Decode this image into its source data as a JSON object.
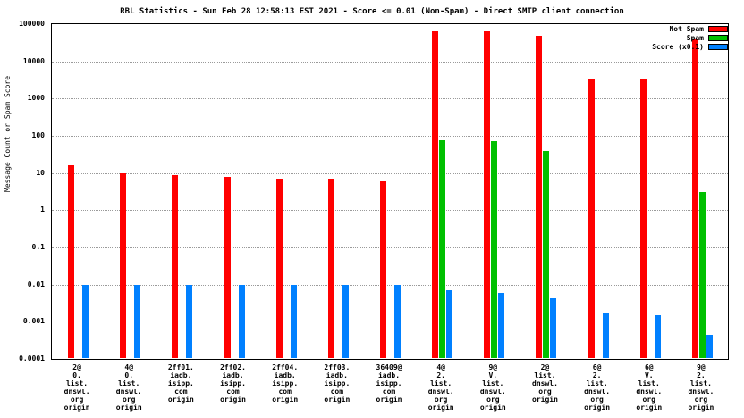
{
  "title": "RBL Statistics - Sun Feb 28 12:58:13 EST 2021 - Score <= 0.01 (Non-Spam) - Direct SMTP client connection",
  "chart_data": {
    "type": "bar",
    "title": "RBL Statistics - Sun Feb 28 12:58:13 EST 2021 - Score <= 0.01 (Non-Spam) - Direct SMTP client connection",
    "ylabel": "Message Count or Spam Score",
    "yscale": "log",
    "ylim": [
      0.0001,
      100000
    ],
    "grid": true,
    "legend_position": "top-right",
    "yticks": [
      {
        "value": 100000,
        "label": "100000"
      },
      {
        "value": 10000,
        "label": "10000"
      },
      {
        "value": 1000,
        "label": "1000"
      },
      {
        "value": 100,
        "label": "100"
      },
      {
        "value": 10,
        "label": "10"
      },
      {
        "value": 1,
        "label": "1"
      },
      {
        "value": 0.1,
        "label": "0.1"
      },
      {
        "value": 0.01,
        "label": "0.01"
      },
      {
        "value": 0.001,
        "label": "0.001"
      },
      {
        "value": 0.0001,
        "label": "0.0001"
      }
    ],
    "categories": [
      [
        "2@",
        "0.",
        "list.",
        "dnswl.",
        "org",
        "origin"
      ],
      [
        "4@",
        "0.",
        "list.",
        "dnswl.",
        "org",
        "origin"
      ],
      [
        "2ff01.",
        "iadb.",
        "isipp.",
        "com",
        "origin"
      ],
      [
        "2ff02.",
        "iadb.",
        "isipp.",
        "com",
        "origin"
      ],
      [
        "2ff04.",
        "iadb.",
        "isipp.",
        "com",
        "origin"
      ],
      [
        "2ff03.",
        "iadb.",
        "isipp.",
        "com",
        "origin"
      ],
      [
        "36409@",
        "iadb.",
        "isipp.",
        "com",
        "origin"
      ],
      [
        "4@",
        "2.",
        "list.",
        "dnswl.",
        "org",
        "origin"
      ],
      [
        "9@",
        "V.",
        "list.",
        "dnswl.",
        "org",
        "origin"
      ],
      [
        "2@",
        "list.",
        "dnswl.",
        "org",
        "origin"
      ],
      [
        "6@",
        "2.",
        "list.",
        "dnswl.",
        "org",
        "origin"
      ],
      [
        "6@",
        "V.",
        "list.",
        "dnswl.",
        "org",
        "origin"
      ],
      [
        "9@",
        "2.",
        "list.",
        "dnswl.",
        "org",
        "origin"
      ]
    ],
    "series": [
      {
        "name": "Not Spam",
        "color": "#ff0000",
        "values": [
          16,
          10,
          9,
          8,
          7,
          7,
          6,
          65000,
          65000,
          50000,
          3200,
          3500,
          40000
        ]
      },
      {
        "name": "Spam",
        "color": "#00c000",
        "values": [
          null,
          null,
          null,
          null,
          null,
          null,
          null,
          75,
          70,
          40,
          null,
          null,
          3
        ]
      },
      {
        "name": "Score (x0.1)",
        "color": "#0080ff",
        "values": [
          0.01,
          0.01,
          0.01,
          0.01,
          0.01,
          0.01,
          0.01,
          0.007,
          0.006,
          0.0042,
          0.0018,
          0.0015,
          0.00045
        ]
      }
    ]
  }
}
